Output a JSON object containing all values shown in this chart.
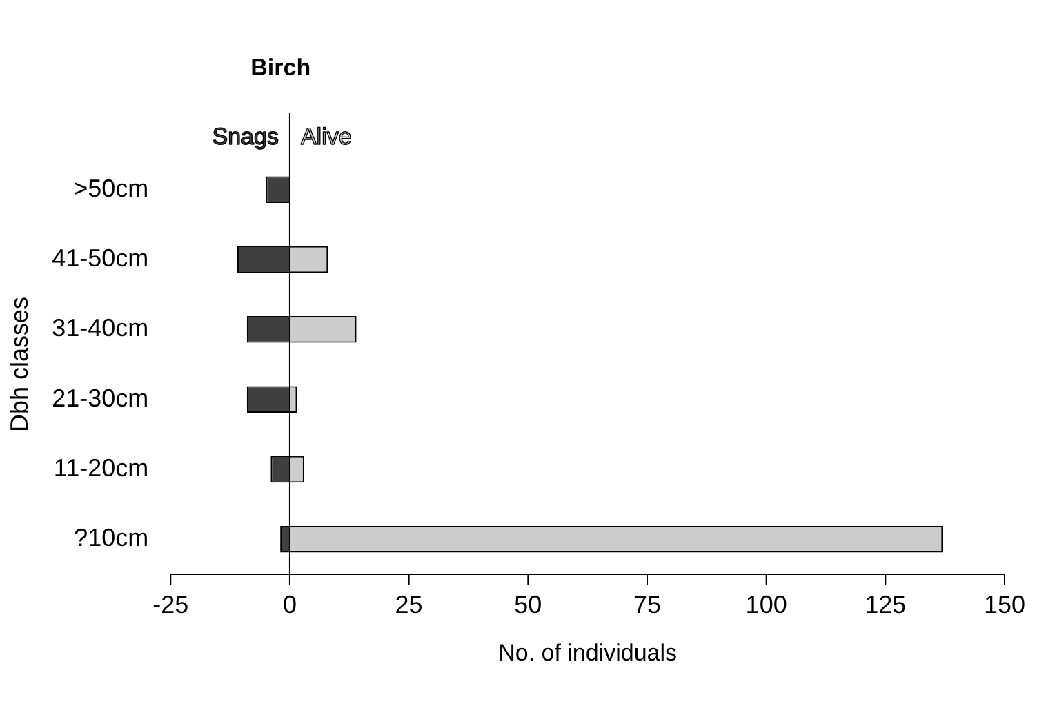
{
  "chart_data": {
    "type": "bar",
    "orientation": "horizontal",
    "stacked": true,
    "title": "Birch",
    "xlabel": "No. of individuals",
    "ylabel": "Dbh classes",
    "categories": [
      ">50cm",
      "41-50cm",
      "31-40cm",
      "21-30cm",
      "11-20cm",
      "?10cm"
    ],
    "series": [
      {
        "name": "Snags",
        "color": "#404040",
        "values": [
          -5,
          -11,
          -9,
          -9,
          -4,
          -2
        ]
      },
      {
        "name": "Alive",
        "color": "#cccccc",
        "values": [
          null,
          8,
          14,
          1.5,
          3,
          137
        ]
      }
    ],
    "xlim": [
      -25,
      150
    ],
    "xticks": [
      -25,
      0,
      25,
      50,
      75,
      100,
      125,
      150
    ],
    "legend": false
  }
}
